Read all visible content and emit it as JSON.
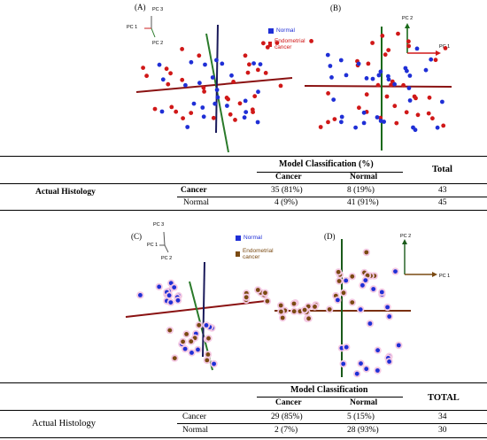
{
  "panels": {
    "A": {
      "label": "(A)",
      "axes": {
        "pc3": "PC 3",
        "pc1": "PC 1",
        "pc2": "PC 2"
      },
      "legend": [
        {
          "label": "Normal",
          "color": "#1f2fd6"
        },
        {
          "label": "Endometrial cancer",
          "color": "#d01818"
        }
      ]
    },
    "B": {
      "label": "(B)",
      "axes": {
        "pc2": "PC 2",
        "pc1": "PC 1"
      }
    },
    "C": {
      "label": "(C)",
      "axes": {
        "pc3": "PC 3",
        "pc1": "PC 1",
        "pc2": "PC 2"
      },
      "legend": [
        {
          "label": "Normal",
          "color": "#1f2fd6"
        },
        {
          "label": "Endometrial cancer",
          "color": "#7a4a12"
        }
      ]
    },
    "D": {
      "label": "(D)",
      "axes": {
        "pc2": "PC 2",
        "pc1": "PC 1"
      }
    }
  },
  "table1": {
    "group_header": "Model Classification (%)",
    "total_header": "Total",
    "col_cancer": "Cancer",
    "col_normal": "Normal",
    "row_header": "Actual Histology",
    "rows": [
      {
        "label": "Cancer",
        "cancer": "35 (81%)",
        "normal": "8 (19%)",
        "total": "43"
      },
      {
        "label": "Normal",
        "cancer": "4 (9%)",
        "normal": "41 (91%)",
        "total": "45"
      }
    ]
  },
  "table2": {
    "group_header": "Model Classification",
    "total_header": "TOTAL",
    "col_cancer": "Cancer",
    "col_normal": "Normal",
    "row_header": "Actual Histology",
    "rows": [
      {
        "label": "Cancer",
        "cancer": "29 (85%)",
        "normal": "5 (15%)",
        "total": "34"
      },
      {
        "label": "Normal",
        "cancer": "2 (7%)",
        "normal": "28 (93%)",
        "total": "30"
      }
    ]
  }
}
